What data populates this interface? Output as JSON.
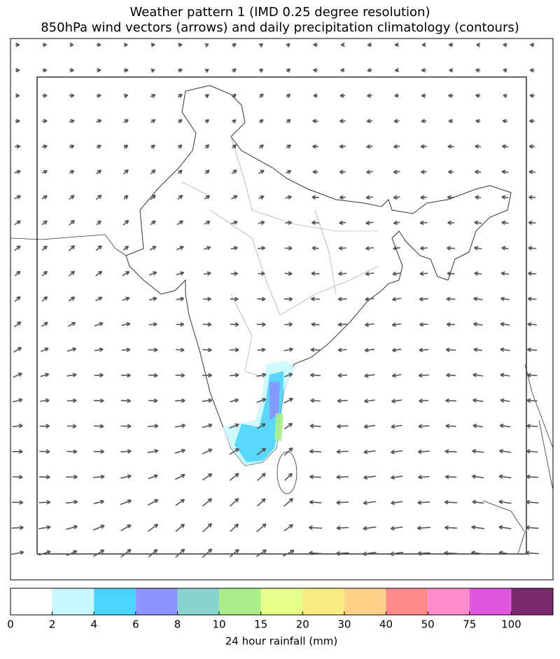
{
  "title": [
    "Weather pattern 1 (IMD 0.25 degree resolution)",
    "850hPa wind vectors (arrows) and daily precipitation climatology (contours)"
  ],
  "colorbar": {
    "label": "24 hour rainfall (mm)",
    "ticks": [
      0,
      2,
      4,
      6,
      8,
      10,
      15,
      20,
      30,
      40,
      50,
      75,
      100
    ],
    "colors": [
      "#ffffff",
      "#c8f8ff",
      "#4dd3ff",
      "#8c94ff",
      "#88d4cc",
      "#aaee8a",
      "#e6ff88",
      "#f8ec80",
      "#ffd08a",
      "#ff8a8a",
      "#ff8ccc",
      "#e055dd",
      "#7a2a6c"
    ]
  }
}
